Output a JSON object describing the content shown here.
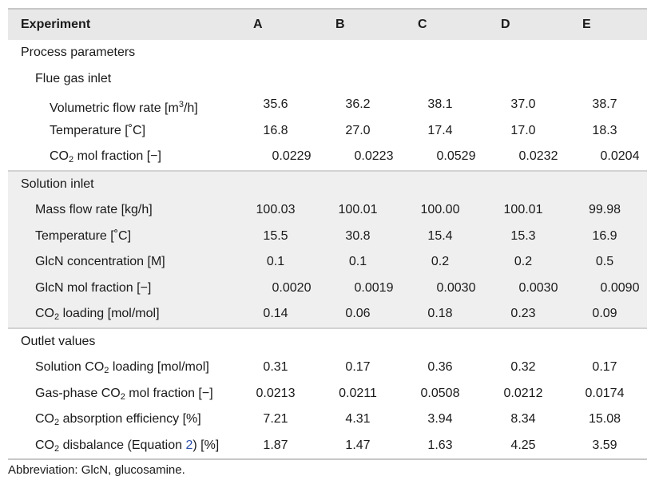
{
  "header": {
    "label": "Experiment",
    "columns": [
      "A",
      "B",
      "C",
      "D",
      "E"
    ]
  },
  "sections": {
    "process": "Process parameters",
    "flue": "Flue gas inlet",
    "solution": "Solution inlet",
    "outlet": "Outlet values"
  },
  "rows": [
    {
      "label_pre": "Volumetric flow rate [m",
      "label_sup": "3",
      "label_post": "/h]",
      "values": [
        "35.6",
        "36.2",
        "38.1",
        "37.0",
        "38.7"
      ]
    },
    {
      "label": "Temperature [˚C]",
      "values": [
        "16.8",
        "27.0",
        "17.4",
        "17.0",
        "18.3"
      ]
    },
    {
      "label_pre": "CO",
      "label_sub": "2",
      "label_post": " mol fraction [−]",
      "values": [
        "0.0229",
        "0.0223",
        "0.0529",
        "0.0232",
        "0.0204"
      ]
    },
    {
      "label": "Mass flow rate [kg/h]",
      "values": [
        "100.03",
        "100.01",
        "100.00",
        "100.01",
        "99.98"
      ]
    },
    {
      "label": "Temperature [˚C]",
      "values": [
        "15.5",
        "30.8",
        "15.4",
        "15.3",
        "16.9"
      ]
    },
    {
      "label": "GlcN concentration [M]",
      "values": [
        "0.1",
        "0.1",
        "0.2",
        "0.2",
        "0.5"
      ]
    },
    {
      "label": "GlcN mol fraction [−]",
      "values": [
        "0.0020",
        "0.0019",
        "0.0030",
        "0.0030",
        "0.0090"
      ]
    },
    {
      "label_pre": "CO",
      "label_sub": "2",
      "label_post": " loading [mol/mol]",
      "values": [
        "0.14",
        "0.06",
        "0.18",
        "0.23",
        "0.09"
      ]
    },
    {
      "label_pre": "Solution CO",
      "label_sub": "2",
      "label_post": " loading [mol/mol]",
      "values": [
        "0.31",
        "0.17",
        "0.36",
        "0.32",
        "0.17"
      ]
    },
    {
      "label_pre": "Gas-phase CO",
      "label_sub": "2",
      "label_post": " mol fraction [−]",
      "values": [
        "0.0213",
        "0.0211",
        "0.0508",
        "0.0212",
        "0.0174"
      ]
    },
    {
      "label_pre": "CO",
      "label_sub": "2",
      "label_post": " absorption efficiency [%]",
      "values": [
        "7.21",
        "4.31",
        "3.94",
        "8.34",
        "15.08"
      ]
    },
    {
      "label_pre": "CO",
      "label_sub": "2",
      "label_mid": " disbalance (Equation ",
      "label_ref": "2",
      "label_post": ") [%]",
      "values": [
        "1.87",
        "1.47",
        "1.63",
        "4.25",
        "3.59"
      ]
    }
  ],
  "footnote": "Abbreviation: GlcN, glucosamine."
}
